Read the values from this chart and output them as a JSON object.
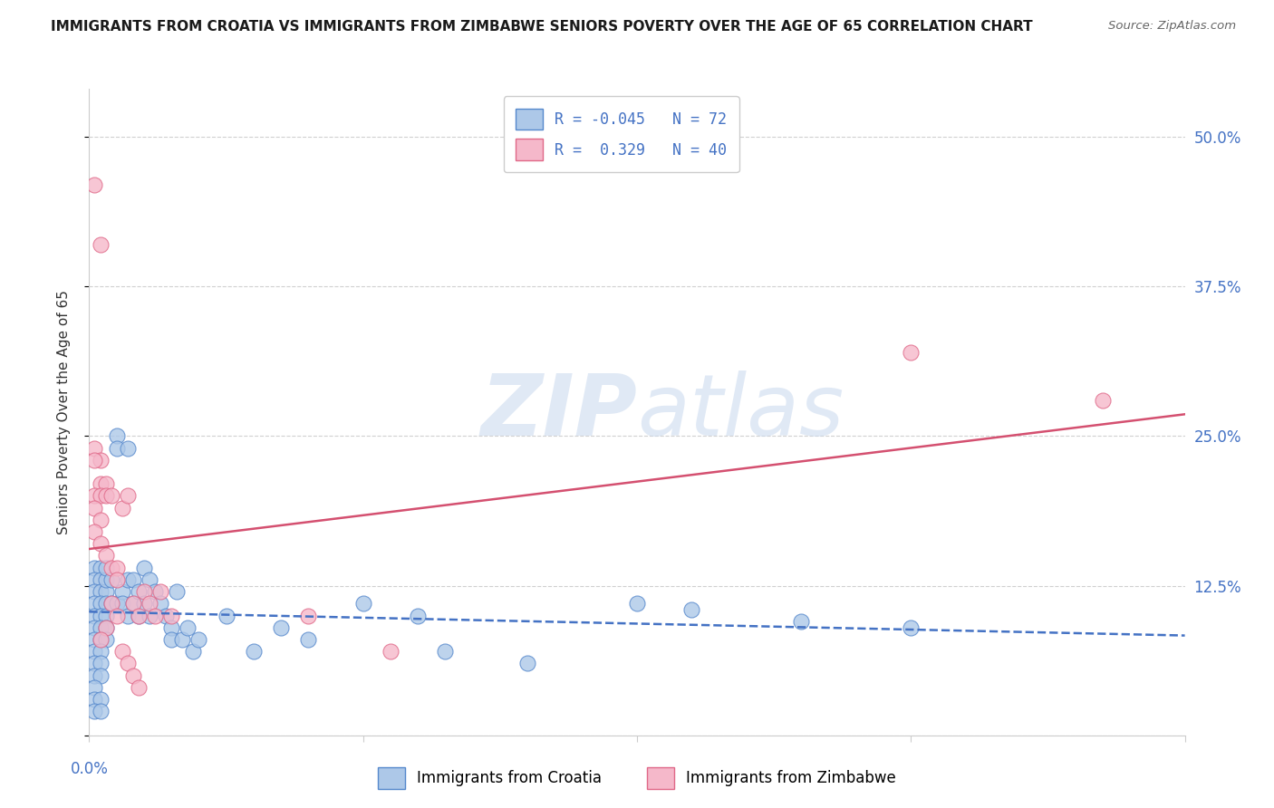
{
  "title": "IMMIGRANTS FROM CROATIA VS IMMIGRANTS FROM ZIMBABWE SENIORS POVERTY OVER THE AGE OF 65 CORRELATION CHART",
  "source": "Source: ZipAtlas.com",
  "ylabel": "Seniors Poverty Over the Age of 65",
  "xlim": [
    0.0,
    0.2
  ],
  "ylim": [
    0.0,
    0.54
  ],
  "yticks": [
    0.0,
    0.125,
    0.25,
    0.375,
    0.5
  ],
  "ytick_labels": [
    "",
    "12.5%",
    "25.0%",
    "37.5%",
    "50.0%"
  ],
  "xtick_positions": [
    0.0,
    0.05,
    0.1,
    0.15,
    0.2
  ],
  "croatia_color": "#adc8e8",
  "croatia_edge_color": "#5588cc",
  "zimbabwe_color": "#f5b8ca",
  "zimbabwe_edge_color": "#e06888",
  "croatia_line_color": "#4472c4",
  "zimbabwe_line_color": "#d45070",
  "croatia_R": -0.045,
  "croatia_N": 72,
  "zimbabwe_R": 0.329,
  "zimbabwe_N": 40,
  "watermark_zip": "ZIP",
  "watermark_atlas": "atlas",
  "background_color": "#ffffff",
  "croatia_points": [
    [
      0.001,
      0.14
    ],
    [
      0.002,
      0.14
    ],
    [
      0.001,
      0.13
    ],
    [
      0.002,
      0.13
    ],
    [
      0.001,
      0.12
    ],
    [
      0.002,
      0.12
    ],
    [
      0.003,
      0.12
    ],
    [
      0.001,
      0.11
    ],
    [
      0.002,
      0.11
    ],
    [
      0.003,
      0.11
    ],
    [
      0.001,
      0.1
    ],
    [
      0.002,
      0.1
    ],
    [
      0.003,
      0.1
    ],
    [
      0.001,
      0.09
    ],
    [
      0.002,
      0.09
    ],
    [
      0.003,
      0.09
    ],
    [
      0.001,
      0.08
    ],
    [
      0.002,
      0.08
    ],
    [
      0.003,
      0.08
    ],
    [
      0.001,
      0.07
    ],
    [
      0.002,
      0.07
    ],
    [
      0.001,
      0.06
    ],
    [
      0.002,
      0.06
    ],
    [
      0.001,
      0.05
    ],
    [
      0.002,
      0.05
    ],
    [
      0.001,
      0.04
    ],
    [
      0.001,
      0.03
    ],
    [
      0.002,
      0.03
    ],
    [
      0.001,
      0.02
    ],
    [
      0.002,
      0.02
    ],
    [
      0.003,
      0.13
    ],
    [
      0.003,
      0.14
    ],
    [
      0.004,
      0.13
    ],
    [
      0.004,
      0.11
    ],
    [
      0.005,
      0.25
    ],
    [
      0.005,
      0.24
    ],
    [
      0.005,
      0.11
    ],
    [
      0.006,
      0.12
    ],
    [
      0.006,
      0.11
    ],
    [
      0.007,
      0.24
    ],
    [
      0.007,
      0.13
    ],
    [
      0.007,
      0.1
    ],
    [
      0.008,
      0.13
    ],
    [
      0.008,
      0.11
    ],
    [
      0.009,
      0.12
    ],
    [
      0.009,
      0.1
    ],
    [
      0.01,
      0.14
    ],
    [
      0.01,
      0.11
    ],
    [
      0.011,
      0.13
    ],
    [
      0.011,
      0.1
    ],
    [
      0.012,
      0.12
    ],
    [
      0.013,
      0.11
    ],
    [
      0.014,
      0.1
    ],
    [
      0.015,
      0.09
    ],
    [
      0.015,
      0.08
    ],
    [
      0.016,
      0.12
    ],
    [
      0.017,
      0.08
    ],
    [
      0.018,
      0.09
    ],
    [
      0.019,
      0.07
    ],
    [
      0.02,
      0.08
    ],
    [
      0.025,
      0.1
    ],
    [
      0.03,
      0.07
    ],
    [
      0.035,
      0.09
    ],
    [
      0.04,
      0.08
    ],
    [
      0.05,
      0.11
    ],
    [
      0.06,
      0.1
    ],
    [
      0.065,
      0.07
    ],
    [
      0.08,
      0.06
    ],
    [
      0.1,
      0.11
    ],
    [
      0.11,
      0.105
    ],
    [
      0.13,
      0.095
    ],
    [
      0.15,
      0.09
    ]
  ],
  "zimbabwe_points": [
    [
      0.001,
      0.46
    ],
    [
      0.002,
      0.41
    ],
    [
      0.001,
      0.24
    ],
    [
      0.002,
      0.23
    ],
    [
      0.002,
      0.21
    ],
    [
      0.003,
      0.21
    ],
    [
      0.001,
      0.2
    ],
    [
      0.002,
      0.2
    ],
    [
      0.003,
      0.2
    ],
    [
      0.004,
      0.2
    ],
    [
      0.001,
      0.19
    ],
    [
      0.002,
      0.18
    ],
    [
      0.001,
      0.17
    ],
    [
      0.002,
      0.16
    ],
    [
      0.003,
      0.15
    ],
    [
      0.004,
      0.14
    ],
    [
      0.005,
      0.14
    ],
    [
      0.005,
      0.13
    ],
    [
      0.006,
      0.19
    ],
    [
      0.007,
      0.2
    ],
    [
      0.004,
      0.11
    ],
    [
      0.005,
      0.1
    ],
    [
      0.003,
      0.09
    ],
    [
      0.002,
      0.08
    ],
    [
      0.001,
      0.23
    ],
    [
      0.006,
      0.07
    ],
    [
      0.007,
      0.06
    ],
    [
      0.008,
      0.05
    ],
    [
      0.009,
      0.04
    ],
    [
      0.008,
      0.11
    ],
    [
      0.009,
      0.1
    ],
    [
      0.01,
      0.12
    ],
    [
      0.011,
      0.11
    ],
    [
      0.012,
      0.1
    ],
    [
      0.013,
      0.12
    ],
    [
      0.015,
      0.1
    ],
    [
      0.04,
      0.1
    ],
    [
      0.055,
      0.07
    ],
    [
      0.15,
      0.32
    ],
    [
      0.185,
      0.28
    ]
  ]
}
